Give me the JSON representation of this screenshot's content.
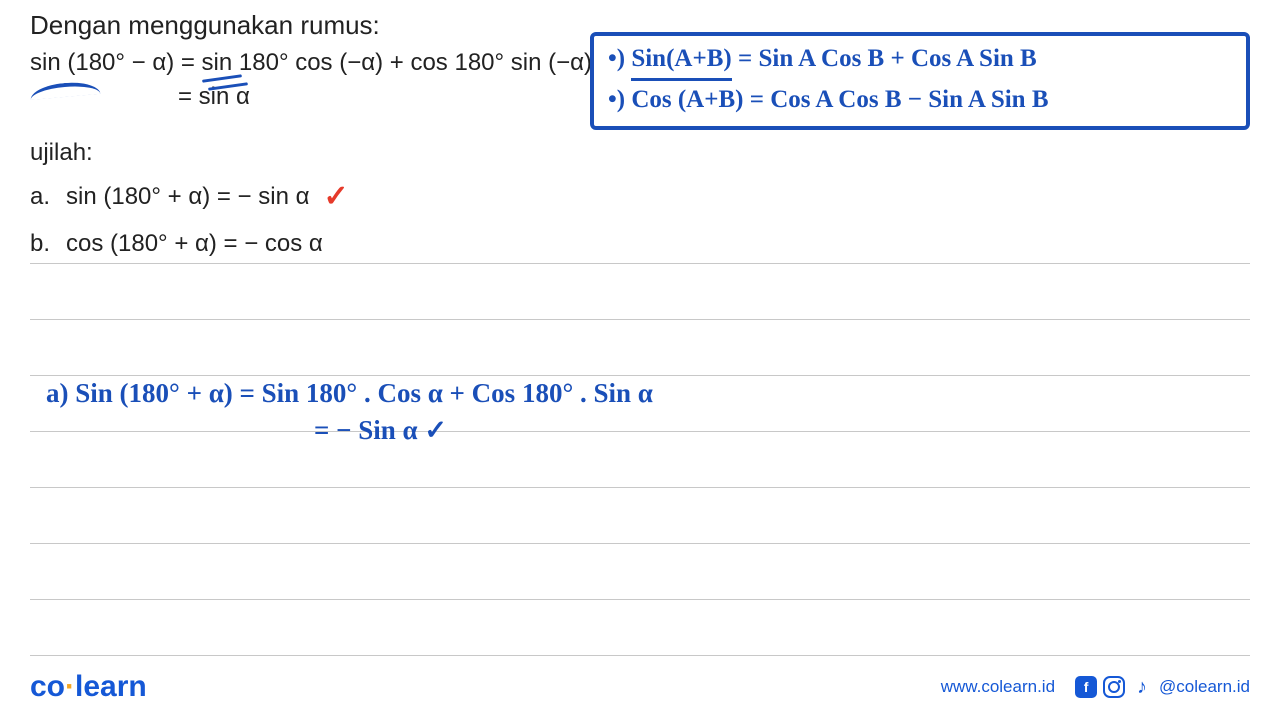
{
  "title": "Dengan menggunakan rumus:",
  "formula": {
    "line1": "sin (180° − α) = sin 180° cos (−α) + cos 180° sin (−α)",
    "line2": "= sin α"
  },
  "ujilah_label": "ujilah:",
  "items": {
    "a_label": "a.",
    "a_text": "sin (180° + α) = − sin α",
    "b_label": "b.",
    "b_text": "cos (180° + α) = − cos α"
  },
  "box": {
    "line1_prefix": "•) ",
    "line1_underlined": "Sin(A+B)",
    "line1_rest": " = Sin A Cos B + Cos A Sin B",
    "line2": "•) Cos (A+B) = Cos A Cos B − Sin A Sin B"
  },
  "handwork": {
    "line1": "a) Sin (180° + α)  =  Sin 180° . Cos α  +  Cos 180° . Sin α",
    "line2": "= − Sin α  ✓"
  },
  "checkmark": "✓",
  "footer": {
    "logo_co": "co",
    "logo_dot": "·",
    "logo_learn": "learn",
    "url": "www.colearn.id",
    "handle": "@colearn.id"
  },
  "colors": {
    "blue_ink": "#1a4fb8",
    "red_check": "#e63a2a",
    "brand_blue": "#1558d6",
    "brand_orange": "#f5a623",
    "rule": "#c8c8c8",
    "text": "#222222",
    "bg": "#ffffff"
  }
}
